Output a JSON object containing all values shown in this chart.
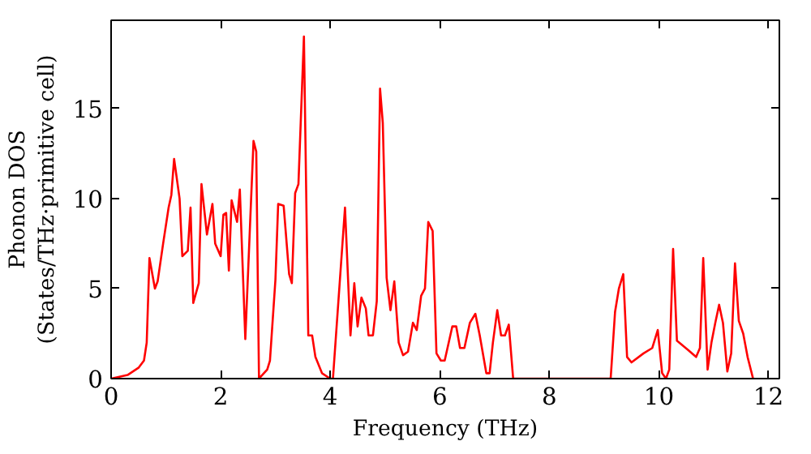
{
  "chart_data": {
    "type": "line",
    "xlabel": "Frequency (THz)",
    "ylabel": "Phonon DOS\n(States/THz·primitive cell)",
    "xlim": [
      0,
      12.2
    ],
    "ylim": [
      0,
      19.9
    ],
    "xticks": [
      0,
      2,
      4,
      6,
      8,
      10,
      12
    ],
    "yticks": [
      0,
      5,
      10,
      15
    ],
    "grid": false,
    "series": [
      {
        "color": "#ff0000",
        "x": [
          0,
          0.3,
          0.5,
          0.6,
          0.65,
          0.7,
          0.8,
          0.85,
          0.95,
          1.05,
          1.1,
          1.15,
          1.25,
          1.3,
          1.4,
          1.45,
          1.5,
          1.6,
          1.65,
          1.75,
          1.85,
          1.9,
          2.0,
          2.05,
          2.1,
          2.15,
          2.2,
          2.3,
          2.35,
          2.45,
          2.6,
          2.65,
          2.7,
          2.85,
          2.9,
          3.0,
          3.05,
          3.15,
          3.25,
          3.3,
          3.36,
          3.42,
          3.52,
          3.6,
          3.67,
          3.73,
          3.85,
          4.0,
          4.05,
          4.27,
          4.37,
          4.44,
          4.5,
          4.57,
          4.65,
          4.7,
          4.78,
          4.85,
          4.91,
          4.96,
          5.03,
          5.1,
          5.17,
          5.25,
          5.33,
          5.42,
          5.51,
          5.58,
          5.66,
          5.73,
          5.79,
          5.87,
          5.94,
          6.02,
          6.09,
          6.23,
          6.3,
          6.37,
          6.45,
          6.55,
          6.65,
          6.73,
          6.85,
          6.91,
          6.97,
          7.05,
          7.12,
          7.19,
          7.26,
          7.34,
          9.12,
          9.2,
          9.27,
          9.35,
          9.42,
          9.5,
          9.72,
          9.88,
          9.98,
          10.06,
          10.13,
          10.19,
          10.26,
          10.33,
          10.53,
          10.68,
          10.75,
          10.81,
          10.89,
          10.96,
          11.03,
          11.1,
          11.17,
          11.25,
          11.32,
          11.39,
          11.46,
          11.54,
          11.62,
          11.72
        ],
        "values": [
          0,
          0.2,
          0.6,
          1,
          2,
          6.7,
          5,
          5.4,
          7.5,
          9.5,
          10.2,
          12.2,
          10,
          6.8,
          7.1,
          9.5,
          4.2,
          5.3,
          10.8,
          8,
          9.7,
          7.5,
          6.8,
          9.1,
          9.2,
          6,
          9.9,
          8.7,
          10.5,
          2.2,
          13.2,
          12.6,
          0,
          0.5,
          1,
          5.5,
          9.7,
          9.6,
          5.8,
          5.3,
          10.3,
          10.8,
          19,
          2.4,
          2.4,
          1.2,
          0.3,
          0,
          0,
          9.5,
          2.4,
          5.3,
          2.9,
          4.5,
          3.9,
          2.4,
          2.4,
          4.3,
          16.1,
          14.2,
          5.6,
          3.8,
          5.4,
          2,
          1.3,
          1.5,
          3.1,
          2.7,
          4.6,
          5,
          8.7,
          8.2,
          1.4,
          1,
          1,
          2.9,
          2.9,
          1.7,
          1.7,
          3.1,
          3.6,
          2.4,
          0.3,
          0.3,
          2,
          3.8,
          2.4,
          2.4,
          3,
          0,
          0,
          3.7,
          5,
          5.8,
          1.2,
          0.9,
          1.4,
          1.7,
          2.7,
          0.3,
          0,
          0.5,
          7.2,
          2.1,
          1.6,
          1.2,
          1.7,
          6.7,
          0.5,
          2,
          3.1,
          4.1,
          3.1,
          0.4,
          1.4,
          6.4,
          3.2,
          2.5,
          1.2,
          0
        ]
      }
    ]
  }
}
